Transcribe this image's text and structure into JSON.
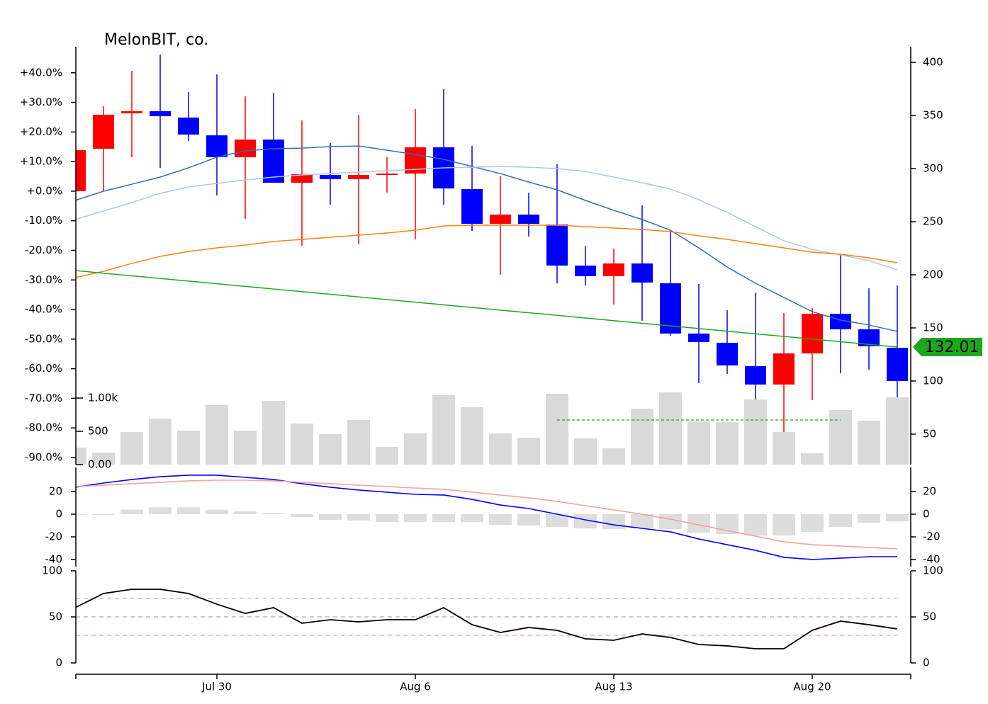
{
  "chart_data": [
    {
      "type": "candlestick",
      "title": "MelonBIT, co.",
      "categories": [
        null,
        null,
        null,
        null,
        null,
        "Jul 30",
        null,
        null,
        null,
        null,
        null,
        null,
        "Aug 6",
        null,
        null,
        null,
        null,
        null,
        null,
        "Aug 13",
        null,
        null,
        null,
        null,
        null,
        null,
        "Aug 20",
        null,
        null,
        null
      ],
      "open": [
        278.7,
        318.7,
        352,
        354,
        348,
        331.3,
        310.7,
        327.3,
        286.7,
        294,
        290,
        294,
        295.3,
        320,
        280.7,
        248,
        256.7,
        247.3,
        208.7,
        198.7,
        210.7,
        192,
        144.7,
        136,
        114,
        96.7,
        126,
        163.3,
        148.7,
        131.3
      ],
      "high": [
        317.3,
        358.7,
        392,
        407.3,
        372,
        388.7,
        368,
        371.3,
        345.3,
        324,
        350.7,
        310.7,
        356,
        374.7,
        321.3,
        292.7,
        277.3,
        304,
        227.3,
        224.7,
        265.3,
        242,
        191.3,
        166.7,
        183.3,
        164,
        168.7,
        220,
        187.3,
        190
      ],
      "low": [
        278.7,
        278.7,
        310.7,
        300.7,
        326,
        274.7,
        252.7,
        286.7,
        227.3,
        266,
        228.7,
        277.3,
        233.3,
        266,
        241.3,
        200,
        236,
        192,
        190,
        172,
        156.7,
        142.7,
        98,
        106.7,
        45.3,
        28.7,
        82,
        107.3,
        110.7,
        74
      ],
      "close": [
        317.3,
        350.7,
        354,
        349.3,
        332,
        310.7,
        327.3,
        286.7,
        294.7,
        290,
        294,
        295.3,
        320,
        281.3,
        248,
        256.7,
        248,
        208.7,
        198.7,
        210.7,
        192.7,
        144.7,
        136.7,
        114.7,
        96.7,
        126,
        163.3,
        148.7,
        132.7,
        100
      ],
      "up_color": "#ff0000",
      "down_color": "#0000ff",
      "series": [
        {
          "color": "#2f6fb0",
          "values": [
            270.0,
            278.7,
            285.3,
            292.0,
            300.7,
            310.7,
            316.7,
            318.7,
            319.3,
            320.7,
            321.3,
            317.3,
            313.3,
            308.7,
            302.0,
            295.3,
            287.3,
            280.0,
            270.0,
            260.7,
            252.0,
            242.0,
            225.3,
            207.3,
            192.0,
            178.7,
            165.3,
            157.3,
            152.7,
            146.7
          ]
        },
        {
          "color": "#aec7e8",
          "values": [
            252.0,
            260.0,
            268.0,
            276.7,
            282.7,
            286.0,
            289.3,
            292.0,
            294.0,
            295.3,
            296.7,
            298.0,
            299.3,
            300.7,
            301.3,
            302.0,
            301.3,
            300.0,
            297.3,
            292.0,
            286.7,
            280.7,
            270.7,
            258.7,
            245.3,
            232.0,
            224.0,
            218.7,
            213.3,
            204.7
          ]
        },
        {
          "color": "#ff7f0e",
          "values": [
            197.3,
            203.3,
            210.7,
            217.3,
            222.0,
            225.3,
            228.0,
            231.3,
            233.3,
            235.3,
            237.3,
            239.3,
            242.0,
            246.0,
            246.7,
            246.7,
            246.7,
            246.7,
            245.3,
            244.0,
            242.7,
            240.7,
            236.7,
            233.3,
            229.3,
            225.3,
            221.3,
            219.3,
            216.0,
            211.3
          ]
        },
        {
          "color": "#1ca81c",
          "values": [
            204.0,
            201.52,
            199.03,
            196.55,
            194.07,
            191.59,
            189.11,
            186.62,
            184.14,
            181.66,
            179.18,
            176.7,
            174.21,
            171.73,
            169.25,
            166.77,
            164.28,
            161.8,
            159.32,
            156.84,
            154.36,
            151.87,
            149.39,
            146.91,
            144.43,
            141.95,
            139.46,
            136.98,
            134.5,
            132.01
          ]
        }
      ],
      "ylim": [
        21.3,
        414.7
      ],
      "yticks": [
        50,
        100,
        150,
        200,
        250,
        300,
        350,
        400
      ],
      "y2lim": [
        -92.4,
        48.8
      ],
      "y2ticks": [
        {
          "value": 40,
          "label": "+40.0%"
        },
        {
          "value": 30,
          "label": "+30.0%"
        },
        {
          "value": 20,
          "label": "+20.0%"
        },
        {
          "value": 10,
          "label": "+10.0%"
        },
        {
          "value": 0,
          "label": "+0.0%"
        },
        {
          "value": -10,
          "label": "-10.0%"
        },
        {
          "value": -20,
          "label": "-20.0%"
        },
        {
          "value": -30,
          "label": "-30.0%"
        },
        {
          "value": -40,
          "label": "-40.0%"
        },
        {
          "value": -50,
          "label": "-50.0%"
        },
        {
          "value": -60,
          "label": "-60.0%"
        },
        {
          "value": -70,
          "label": "-70.0%"
        },
        {
          "value": -80,
          "label": "-80.0%"
        },
        {
          "value": -90,
          "label": "-90.0%"
        }
      ]
    },
    {
      "type": "bar",
      "color": "#d9d9d9",
      "values": [
        255,
        181,
        489,
        691,
        511,
        894,
        511,
        957,
        617,
        457,
        670,
        266,
        468,
        1043,
        862,
        468,
        404,
        1064,
        394,
        245,
        840,
        1085,
        649,
        638,
        979,
        489,
        170,
        819,
        660,
        1011
      ],
      "series": [
        {
          "color": "#1ca81c",
          "values": [
            null,
            null,
            null,
            null,
            null,
            null,
            null,
            null,
            null,
            null,
            null,
            null,
            null,
            null,
            null,
            null,
            null,
            670,
            670,
            670,
            670,
            670,
            670,
            670,
            670,
            670,
            670,
            670,
            null,
            null
          ]
        }
      ],
      "ylim": [
        0,
        1234
      ],
      "yticks": [
        {
          "value": 0,
          "label": "0.00"
        },
        500,
        {
          "value": 1000,
          "label": "1.00k"
        }
      ]
    },
    {
      "type": "macd",
      "series": [
        {
          "color": "#0000ff",
          "values": [
            23.8,
            27.5,
            30.6,
            33.1,
            34.4,
            34.4,
            32.5,
            30.6,
            26.9,
            23.8,
            21.3,
            19.4,
            17.5,
            16.9,
            13.1,
            8.1,
            5.0,
            0,
            -5.0,
            -9.4,
            -12.5,
            -15.6,
            -21.9,
            -26.9,
            -31.9,
            -38.1,
            -40.0,
            -38.8,
            -37.5,
            -37.5
          ]
        },
        {
          "color": "#f4a0a0",
          "values": [
            24.4,
            25.6,
            26.9,
            28.1,
            29.4,
            30.0,
            30.0,
            29.4,
            28.1,
            26.9,
            25.6,
            24.4,
            23.1,
            21.9,
            19.4,
            16.9,
            14.4,
            11.3,
            7.5,
            3.8,
            0,
            -4.4,
            -9.4,
            -14.4,
            -19.4,
            -24.4,
            -26.9,
            -28.1,
            -29.4,
            -30.6
          ]
        }
      ],
      "histogram": {
        "color": "#dddddd",
        "values": [
          -0.6,
          -0.6,
          4,
          6,
          6,
          4,
          2.5,
          1,
          -2.5,
          -5,
          -5.6,
          -6.9,
          -7,
          -7,
          -7,
          -9.4,
          -10,
          -11.3,
          -12.5,
          -13.1,
          -12.5,
          -13.1,
          -16.3,
          -17.5,
          -18.8,
          -18.8,
          -15.6,
          -11.3,
          -7.5,
          -6.3
        ]
      },
      "ylim": [
        -46.25,
        41.25
      ],
      "yticks": [
        20,
        0,
        -20,
        -40
      ]
    },
    {
      "type": "line",
      "series": [
        {
          "color": "#000000",
          "values": [
            60,
            75.4,
            80,
            80,
            75.4,
            63.8,
            53.8,
            60,
            43.1,
            46.9,
            44.6,
            46.9,
            46.9,
            60,
            41.5,
            33.1,
            38.5,
            35.4,
            26.2,
            24.6,
            31.5,
            27.7,
            20,
            18.5,
            15.4,
            15.4,
            35.4,
            45.4,
            41.5,
            36.9
          ]
        }
      ],
      "hlines": [
        {
          "value": 70,
          "color": "#f4a0a0"
        },
        {
          "value": 50,
          "color": "#aaaaaa"
        },
        {
          "value": 30,
          "color": "#f4a0a0"
        }
      ],
      "ylim": [
        0,
        100
      ],
      "yticks": [
        0,
        50,
        100
      ]
    }
  ]
}
